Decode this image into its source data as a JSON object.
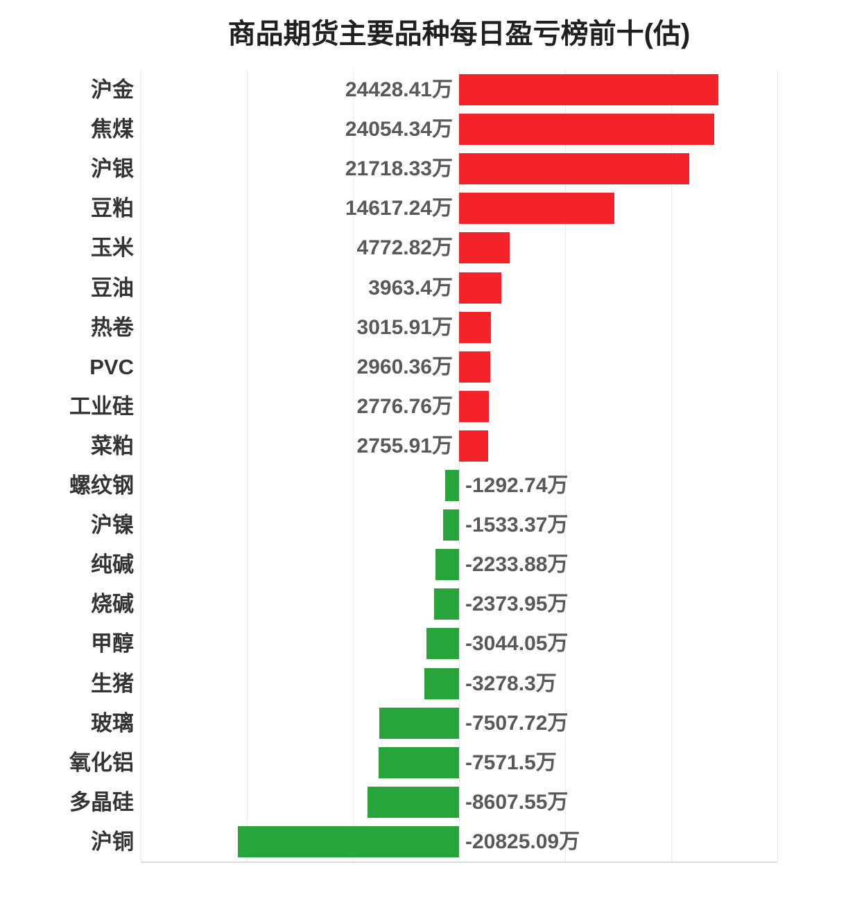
{
  "page": {
    "background": "#ffffff"
  },
  "style": {
    "title_color": "#1f1f1f",
    "category_color": "#333333",
    "value_color": "#595959",
    "grid_color": "#eaeaea",
    "axis_color": "#dcdcdc"
  },
  "chart_data": {
    "type": "bar",
    "orientation": "horizontal",
    "title": "商品期货主要品种每日盈亏榜前十(估)",
    "unit": "万",
    "categories": [
      "沪金",
      "焦煤",
      "沪银",
      "豆粕",
      "玉米",
      "豆油",
      "热卷",
      "PVC",
      "工业硅",
      "菜粕",
      "螺纹钢",
      "沪镍",
      "纯碱",
      "烧碱",
      "甲醇",
      "生猪",
      "玻璃",
      "氧化铝",
      "多晶硅",
      "沪铜"
    ],
    "values": [
      24428.41,
      24054.34,
      21718.33,
      14617.24,
      4772.82,
      3963.4,
      3015.91,
      2960.36,
      2776.76,
      2755.91,
      -1292.74,
      -1533.37,
      -2233.88,
      -2373.95,
      -3044.05,
      -3278.3,
      -7507.72,
      -7571.5,
      -8607.55,
      -20825.09
    ],
    "value_labels": [
      "24428.41万",
      "24054.34万",
      "21718.33万",
      "14617.24万",
      "4772.82万",
      "3963.4万",
      "3015.91万",
      "2960.36万",
      "2776.76万",
      "2755.91万",
      "-1292.74万",
      "-1533.37万",
      "-2233.88万",
      "-2373.95万",
      "-3044.05万",
      "-3278.3万",
      "-7507.72万",
      "-7571.5万",
      "-8607.55万",
      "-20825.09万"
    ],
    "bar_color_positive": "#f42229",
    "bar_color_negative": "#27a53a",
    "xlim": [
      -30000,
      30000
    ],
    "grid_step": 10000,
    "grid": true,
    "legend": false,
    "x_tick_labels_shown": false
  }
}
